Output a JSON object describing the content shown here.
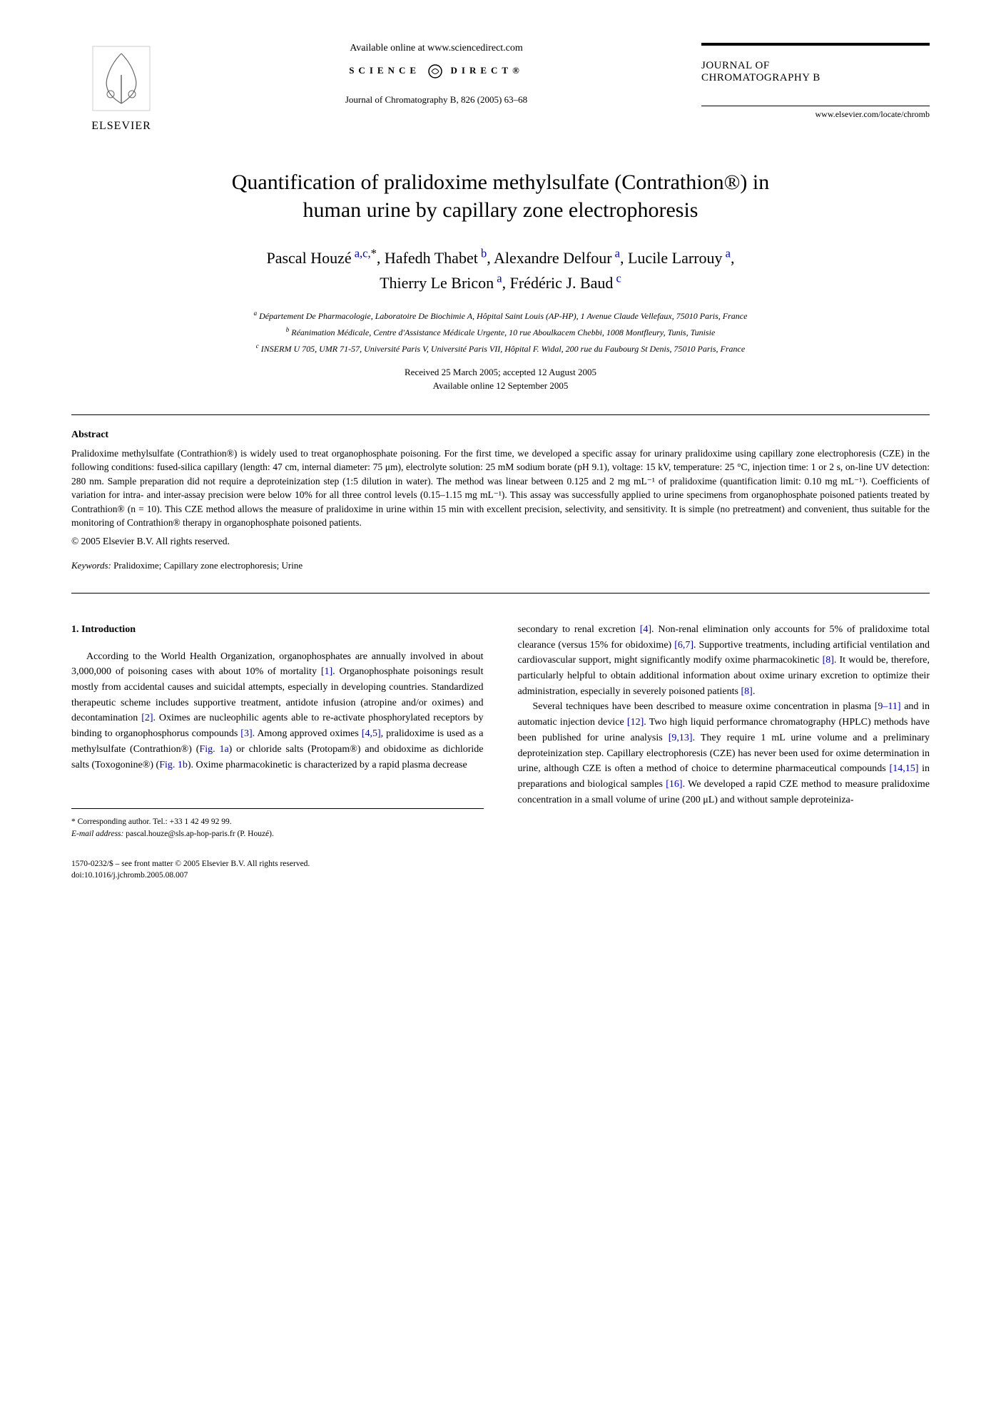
{
  "header": {
    "publisher": "ELSEVIER",
    "online_text": "Available online at www.sciencedirect.com",
    "science_direct": "SCIENCE",
    "science_direct2": "DIRECT®",
    "journal_ref": "Journal of Chromatography B, 826 (2005) 63–68",
    "journal_name_line1": "JOURNAL OF",
    "journal_name_line2": "CHROMATOGRAPHY B",
    "journal_url": "www.elsevier.com/locate/chromb"
  },
  "title_line1": "Quantification of pralidoxime methylsulfate (Contrathion®) in",
  "title_line2": "human urine by capillary zone electrophoresis",
  "authors_line1": "Pascal Houzé a,c,*, Hafedh Thabet b, Alexandre Delfour a, Lucile Larrouy a,",
  "authors_line2": "Thierry Le Bricon a, Frédéric J. Baud c",
  "affiliations": {
    "a": "a Département De Pharmacologie, Laboratoire De Biochimie A, Hôpital Saint Louis (AP-HP), 1 Avenue Claude Vellefaux, 75010 Paris, France",
    "b": "b Réanimation Médicale, Centre d'Assistance Médicale Urgente, 10 rue Aboulkacem Chebbi, 1008 Montfleury, Tunis, Tunisie",
    "c": "c INSERM U 705, UMR 71-57, Université Paris V, Université Paris VII, Hôpital F. Widal, 200 rue du Faubourg St Denis, 75010 Paris, France"
  },
  "dates_line1": "Received 25 March 2005; accepted 12 August 2005",
  "dates_line2": "Available online 12 September 2005",
  "abstract": {
    "heading": "Abstract",
    "text": "Pralidoxime methylsulfate (Contrathion®) is widely used to treat organophosphate poisoning. For the first time, we developed a specific assay for urinary pralidoxime using capillary zone electrophoresis (CZE) in the following conditions: fused-silica capillary (length: 47 cm, internal diameter: 75 μm), electrolyte solution: 25 mM sodium borate (pH 9.1), voltage: 15 kV, temperature: 25 °C, injection time: 1 or 2 s, on-line UV detection: 280 nm. Sample preparation did not require a deproteinization step (1:5 dilution in water). The method was linear between 0.125 and 2 mg mL⁻¹ of pralidoxime (quantification limit: 0.10 mg mL⁻¹). Coefficients of variation for intra- and inter-assay precision were below 10% for all three control levels (0.15–1.15 mg mL⁻¹). This assay was successfully applied to urine specimens from organophosphate poisoned patients treated by Contrathion® (n = 10). This CZE method allows the measure of pralidoxime in urine within 15 min with excellent precision, selectivity, and sensitivity. It is simple (no pretreatment) and convenient, thus suitable for the monitoring of Contrathion® therapy in organophosphate poisoned patients.",
    "copyright": "© 2005 Elsevier B.V. All rights reserved.",
    "keywords_label": "Keywords:",
    "keywords": " Pralidoxime; Capillary zone electrophoresis; Urine"
  },
  "intro": {
    "heading": "1.  Introduction",
    "para_left": "According to the World Health Organization, organophosphates are annually involved in about 3,000,000 of poisoning cases with about 10% of mortality [1]. Organophosphate poisonings result mostly from accidental causes and suicidal attempts, especially in developing countries. Standardized therapeutic scheme includes supportive treatment, antidote infusion (atropine and/or oximes) and decontamination [2]. Oximes are nucleophilic agents able to re-activate phosphorylated receptors by binding to organophosphorus compounds [3]. Among approved oximes [4,5], pralidoxime is used as a methylsulfate (Contrathion®) (Fig. 1a) or chloride salts (Protopam®) and obidoxime as dichloride salts (Toxogonine®) (Fig. 1b). Oxime pharmacokinetic is characterized by a rapid plasma decrease",
    "para_right1": "secondary to renal excretion [4]. Non-renal elimination only accounts for 5% of pralidoxime total clearance (versus 15% for obidoxime) [6,7]. Supportive treatments, including artificial ventilation and cardiovascular support, might significantly modify oxime pharmacokinetic [8]. It would be, therefore, particularly helpful to obtain additional information about oxime urinary excretion to optimize their administration, especially in severely poisoned patients [8].",
    "para_right2": "Several techniques have been described to measure oxime concentration in plasma [9–11] and in automatic injection device [12]. Two high liquid performance chromatography (HPLC) methods have been published for urine analysis [9,13]. They require 1 mL urine volume and a preliminary deproteinization step. Capillary electrophoresis (CZE) has never been used for oxime determination in urine, although CZE is often a method of choice to determine pharmaceutical compounds [14,15] in preparations and biological samples [16]. We developed a rapid CZE method to measure pralidoxime concentration in a small volume of urine (200 μL) and without sample deproteiniza-"
  },
  "footnotes": {
    "corresponding": "* Corresponding author. Tel.: +33 1 42 49 92 99.",
    "email_label": "E-mail address:",
    "email": " pascal.houze@sls.ap-hop-paris.fr (P. Houzé).",
    "issn": "1570-0232/$ – see front matter © 2005 Elsevier B.V. All rights reserved.",
    "doi": "doi:10.1016/j.jchromb.2005.08.007"
  },
  "colors": {
    "text": "#000000",
    "background": "#ffffff",
    "link": "#0000cc"
  },
  "typography": {
    "title_fontsize": 30,
    "authors_fontsize": 22,
    "body_fontsize": 14,
    "abstract_fontsize": 13.5,
    "affiliation_fontsize": 12,
    "footnote_fontsize": 11.5
  }
}
